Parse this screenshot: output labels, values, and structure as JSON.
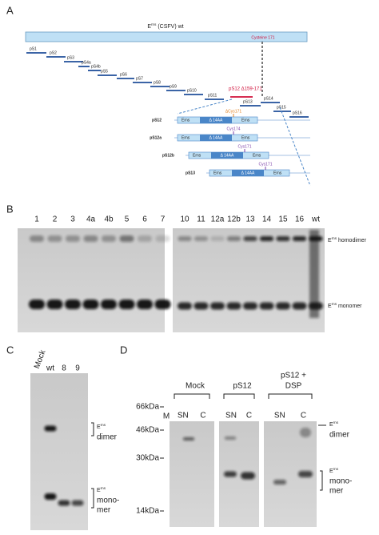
{
  "A": {
    "label": "A",
    "title": {
      "base": "E",
      "sup": "rns",
      "rest": " (CSFV) wt"
    },
    "site": "Cysteine 171",
    "peptides": [
      "pS1",
      "pS2",
      "pS3",
      "pS4a",
      "pS4b",
      "pS5",
      "pS6",
      "pS7",
      "pS8",
      "pS9",
      "pS10",
      "pS11",
      "pS12 Δ159-171",
      "pS13",
      "pS14",
      "pS15",
      "pS16"
    ],
    "inset": [
      {
        "name": "pS12",
        "site": "ΔCys171"
      },
      {
        "name": "pS12a",
        "site": "Cys174"
      },
      {
        "name": "pS12b",
        "site": "Cys171"
      },
      {
        "name": "pS13",
        "site": "Cys171"
      }
    ],
    "domain": "Erns",
    "deletion": "Δ 14AA"
  },
  "B": {
    "label": "B",
    "lanes_left": [
      "1",
      "2",
      "3",
      "4a",
      "4b",
      "5",
      "6",
      "7"
    ],
    "lanes_right": [
      "10",
      "11",
      "12a",
      "12b",
      "13",
      "14",
      "15",
      "16",
      "wt"
    ],
    "dimer": {
      "base": "E",
      "sup": "rns",
      "rest": " homodimer"
    },
    "monomer": {
      "base": "E",
      "sup": "rns",
      "rest": " monomer"
    }
  },
  "C": {
    "label": "C",
    "lanes": [
      "Mock",
      "wt",
      "8",
      "9"
    ],
    "dimer_head": {
      "base": "E",
      "sup": "rns"
    },
    "dimer": [
      "dimer"
    ],
    "monomer_head": {
      "base": "E",
      "sup": "rns"
    },
    "monomer": [
      "mono-",
      "mer"
    ]
  },
  "D": {
    "label": "D",
    "markers": [
      "66kDa",
      "46kDa",
      "30kDa",
      "14kDa"
    ],
    "marker_lane": "M",
    "groups": [
      {
        "title": [
          "Mock"
        ],
        "lanes": [
          "SN",
          "C"
        ]
      },
      {
        "title": [
          "pS12"
        ],
        "lanes": [
          "SN",
          "C"
        ]
      },
      {
        "title": [
          "pS12 +",
          "DSP"
        ],
        "lanes": [
          "SN",
          "C"
        ]
      }
    ],
    "dimer_head": {
      "base": "E",
      "sup": "rns"
    },
    "dimer": [
      "dimer"
    ],
    "monomer_head": {
      "base": "E",
      "sup": "rns"
    },
    "monomer": [
      "mono-",
      "mer"
    ]
  }
}
